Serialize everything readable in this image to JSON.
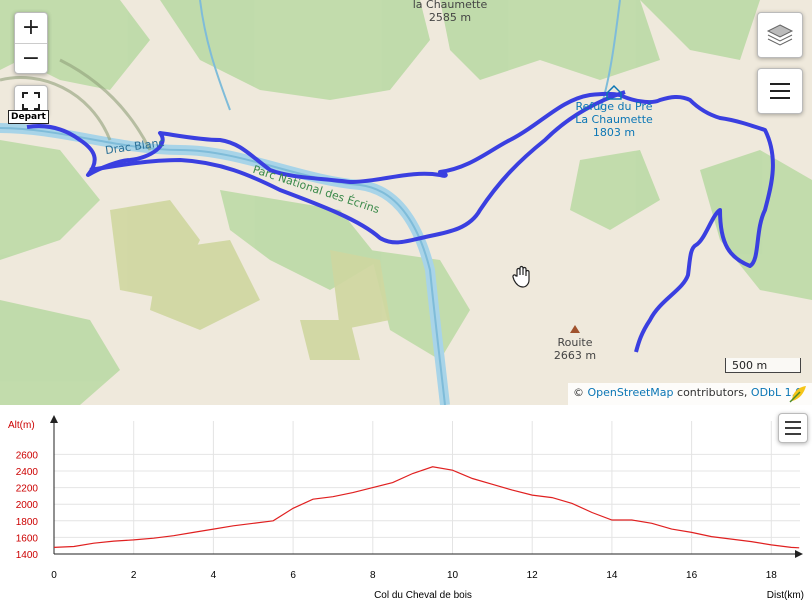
{
  "map": {
    "zoom_in_label": "+",
    "zoom_out_label": "−",
    "start_marker_label": "Depart",
    "places": [
      {
        "name": "la Chaumette",
        "elevation": "2585 m"
      },
      {
        "name": "Refuge du Pré",
        "subtitle": "La Chaumette",
        "elevation": "1803 m"
      },
      {
        "name": "Rouite",
        "elevation": "2663 m"
      }
    ],
    "river_label": "Drac Blanc",
    "park_label": "Parc National des Écrins",
    "scale_label": "500 m",
    "attribution": {
      "prefix": "©",
      "osm": "OpenStreetMap",
      "middle": "contributors,",
      "license": "ODbL 1.0"
    },
    "colors": {
      "track": "#3a3fe0",
      "terrain": "#f2ede2",
      "forest": "#b9d9a5",
      "water": "#a8d4e8"
    }
  },
  "chart_data": {
    "type": "line",
    "xlabel": "Dist(km)",
    "ylabel": "Alt(m)",
    "annotation": "Col du Cheval de bois",
    "x_ticks": [
      0,
      2,
      4,
      6,
      8,
      10,
      12,
      14,
      16,
      18
    ],
    "y_ticks": [
      1400,
      1600,
      1800,
      2000,
      2200,
      2400,
      2600
    ],
    "xlim": [
      0,
      18.7
    ],
    "ylim": [
      1400,
      2650
    ],
    "grid": true,
    "series": [
      {
        "color": "#e02020",
        "points": [
          [
            0,
            1480
          ],
          [
            0.5,
            1490
          ],
          [
            1,
            1530
          ],
          [
            1.5,
            1555
          ],
          [
            2,
            1570
          ],
          [
            2.5,
            1590
          ],
          [
            3,
            1620
          ],
          [
            3.5,
            1660
          ],
          [
            4,
            1700
          ],
          [
            4.5,
            1740
          ],
          [
            5,
            1770
          ],
          [
            5.5,
            1800
          ],
          [
            6,
            1950
          ],
          [
            6.5,
            2060
          ],
          [
            7,
            2090
          ],
          [
            7.5,
            2140
          ],
          [
            8,
            2200
          ],
          [
            8.5,
            2260
          ],
          [
            9,
            2370
          ],
          [
            9.5,
            2450
          ],
          [
            10,
            2410
          ],
          [
            10.5,
            2310
          ],
          [
            11,
            2240
          ],
          [
            11.5,
            2170
          ],
          [
            12,
            2110
          ],
          [
            12.5,
            2080
          ],
          [
            13,
            2010
          ],
          [
            13.5,
            1900
          ],
          [
            14,
            1810
          ],
          [
            14.5,
            1810
          ],
          [
            15,
            1770
          ],
          [
            15.5,
            1700
          ],
          [
            16,
            1660
          ],
          [
            16.5,
            1610
          ],
          [
            17,
            1580
          ],
          [
            17.5,
            1550
          ],
          [
            18,
            1510
          ],
          [
            18.5,
            1480
          ],
          [
            18.7,
            1475
          ]
        ]
      }
    ]
  }
}
